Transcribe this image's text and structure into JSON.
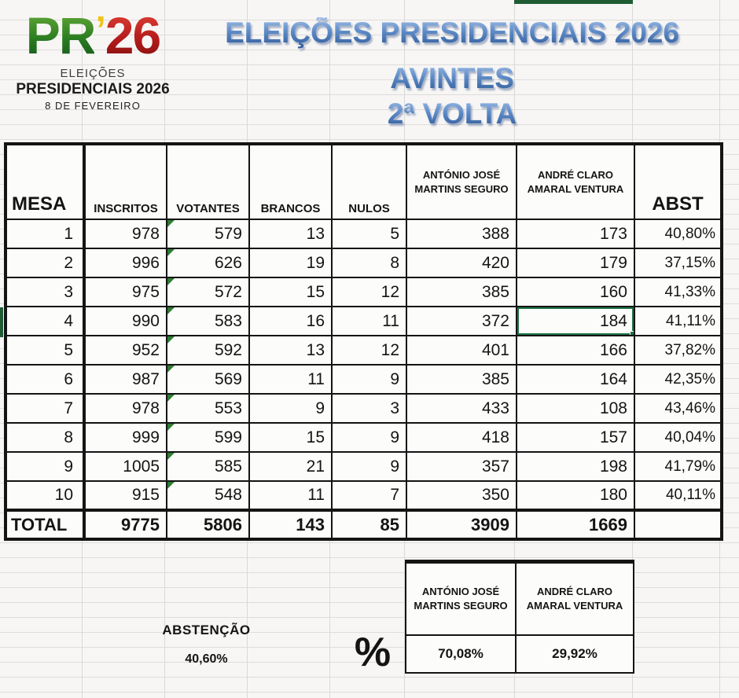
{
  "logo": {
    "pr": "PR",
    "apostrophe": "’",
    "year": "26",
    "subtitle1": "ELEIÇÕES",
    "subtitle2": "PRESIDENCIAIS 2026",
    "subtitle3": "8 DE FEVEREIRO"
  },
  "title": {
    "line1": "ELEIÇÕES PRESIDENCIAIS 2026",
    "line2": "AVINTES",
    "line3": "2ª VOLTA"
  },
  "table": {
    "headers": {
      "mesa": "MESA",
      "inscritos": "INSCRITOS",
      "votantes": "VOTANTES",
      "brancos": "BRANCOS",
      "nulos": "NULOS",
      "seguro": "ANTÓNIO JOSÉ MARTINS SEGURO",
      "ventura": "ANDRÉ CLARO AMARAL VENTURA",
      "abst": "ABST"
    },
    "rows": [
      {
        "mesa": "1",
        "inscritos": "978",
        "votantes": "579",
        "brancos": "13",
        "nulos": "5",
        "seguro": "388",
        "ventura": "173",
        "abst": "40,80%"
      },
      {
        "mesa": "2",
        "inscritos": "996",
        "votantes": "626",
        "brancos": "19",
        "nulos": "8",
        "seguro": "420",
        "ventura": "179",
        "abst": "37,15%"
      },
      {
        "mesa": "3",
        "inscritos": "975",
        "votantes": "572",
        "brancos": "15",
        "nulos": "12",
        "seguro": "385",
        "ventura": "160",
        "abst": "41,33%"
      },
      {
        "mesa": "4",
        "inscritos": "990",
        "votantes": "583",
        "brancos": "16",
        "nulos": "11",
        "seguro": "372",
        "ventura": "184",
        "abst": "41,11%"
      },
      {
        "mesa": "5",
        "inscritos": "952",
        "votantes": "592",
        "brancos": "13",
        "nulos": "12",
        "seguro": "401",
        "ventura": "166",
        "abst": "37,82%"
      },
      {
        "mesa": "6",
        "inscritos": "987",
        "votantes": "569",
        "brancos": "11",
        "nulos": "9",
        "seguro": "385",
        "ventura": "164",
        "abst": "42,35%"
      },
      {
        "mesa": "7",
        "inscritos": "978",
        "votantes": "553",
        "brancos": "9",
        "nulos": "3",
        "seguro": "433",
        "ventura": "108",
        "abst": "43,46%"
      },
      {
        "mesa": "8",
        "inscritos": "999",
        "votantes": "599",
        "brancos": "15",
        "nulos": "9",
        "seguro": "418",
        "ventura": "157",
        "abst": "40,04%"
      },
      {
        "mesa": "9",
        "inscritos": "1005",
        "votantes": "585",
        "brancos": "21",
        "nulos": "9",
        "seguro": "357",
        "ventura": "198",
        "abst": "41,79%"
      },
      {
        "mesa": "10",
        "inscritos": "915",
        "votantes": "548",
        "brancos": "11",
        "nulos": "7",
        "seguro": "350",
        "ventura": "180",
        "abst": "40,11%"
      }
    ],
    "total": {
      "mesa": "TOTAL",
      "inscritos": "9775",
      "votantes": "5806",
      "brancos": "143",
      "nulos": "85",
      "seguro": "3909",
      "ventura": "1669",
      "abst": ""
    },
    "selected_cell": {
      "row": 4,
      "column": "ventura"
    }
  },
  "summary": {
    "abstention_label": "ABSTENÇÃO",
    "abstention_value": "40,60%",
    "percent_symbol": "%",
    "candidates": [
      {
        "name": "ANTÓNIO JOSÉ MARTINS SEGURO",
        "percent": "70,08%"
      },
      {
        "name": "ANDRÉ CLARO AMARAL VENTURA",
        "percent": "29,92%"
      }
    ]
  },
  "colors": {
    "excel_green": "#1f7346",
    "error_triangle_green": "#2d7d32",
    "title_blue_top": "#a3c0e8",
    "title_blue_bottom": "#2d5796",
    "logo_green": "#2c7d22",
    "logo_yellow": "#f0c21a",
    "logo_red": "#b51c1c",
    "gridline": "#d9d9d7"
  }
}
